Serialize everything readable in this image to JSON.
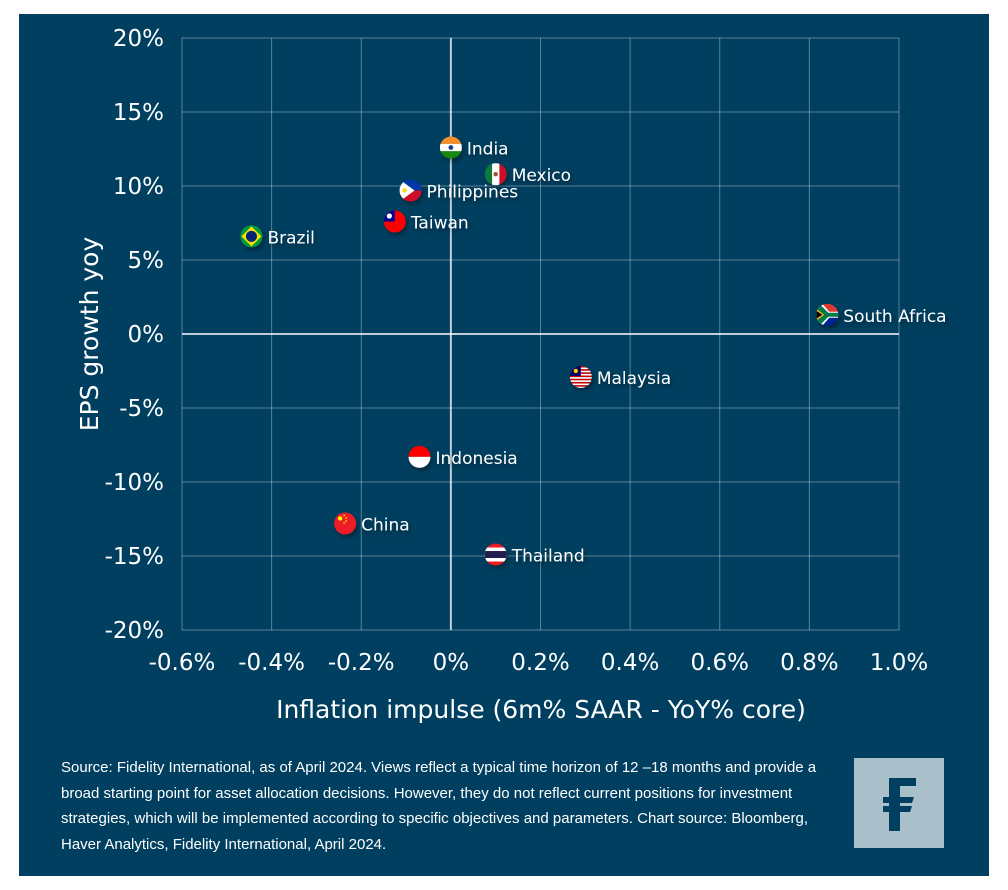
{
  "colors": {
    "background": "#003f5f",
    "grid": "#ffffff",
    "text": "#ffffff",
    "logo_bg": "#a9bfca",
    "logo_fg": "#003f5f"
  },
  "chart_data": {
    "type": "scatter",
    "title": "",
    "xlabel": "Inflation impulse (6m% SAAR - YoY% core)",
    "ylabel": "EPS growth yoy",
    "xlim": [
      -0.6,
      1.0
    ],
    "ylim": [
      -20,
      20
    ],
    "grid": true,
    "x_ticks": [
      -0.6,
      -0.4,
      -0.2,
      0,
      0.2,
      0.4,
      0.6,
      0.8,
      1.0
    ],
    "x_tick_labels": [
      "-0.6%",
      "-0.4%",
      "-0.2%",
      "0%",
      "0.2%",
      "0.4%",
      "0.6%",
      "0.8%",
      "1.0%"
    ],
    "y_ticks": [
      20,
      15,
      10,
      5,
      0,
      -5,
      -10,
      -15,
      -20
    ],
    "y_tick_labels": [
      "20%",
      "15%",
      "10%",
      "5%",
      "0%",
      "-5%",
      "-10%",
      "-15%",
      "-20%"
    ],
    "points": [
      {
        "label": "India",
        "x": 0.0,
        "y": 12.6,
        "flag": "india"
      },
      {
        "label": "Mexico",
        "x": 0.1,
        "y": 10.8,
        "flag": "mexico"
      },
      {
        "label": "Philippines",
        "x": -0.09,
        "y": 9.7,
        "flag": "philippines"
      },
      {
        "label": "Taiwan",
        "x": -0.125,
        "y": 7.6,
        "flag": "taiwan"
      },
      {
        "label": "Brazil",
        "x": -0.445,
        "y": 6.6,
        "flag": "brazil"
      },
      {
        "label": "South Africa",
        "x": 0.84,
        "y": 1.3,
        "flag": "south-africa"
      },
      {
        "label": "Malaysia",
        "x": 0.29,
        "y": -2.9,
        "flag": "malaysia"
      },
      {
        "label": "Indonesia",
        "x": -0.07,
        "y": -8.3,
        "flag": "indonesia"
      },
      {
        "label": "China",
        "x": -0.236,
        "y": -12.8,
        "flag": "china"
      },
      {
        "label": "Thailand",
        "x": 0.1,
        "y": -14.9,
        "flag": "thailand"
      }
    ]
  },
  "footer": {
    "note": "Source: Fidelity International, as of April 2024. Views reflect a typical time horizon of 12 –18 months and provide a broad starting point for asset allocation decisions. However, they do not reflect current positions for investment strategies, which will be implemented according to specific objectives and parameters. Chart source: Bloomberg, Haver Analytics, Fidelity International, April 2024."
  },
  "logo": {
    "icon": "fidelity-f-logo"
  }
}
